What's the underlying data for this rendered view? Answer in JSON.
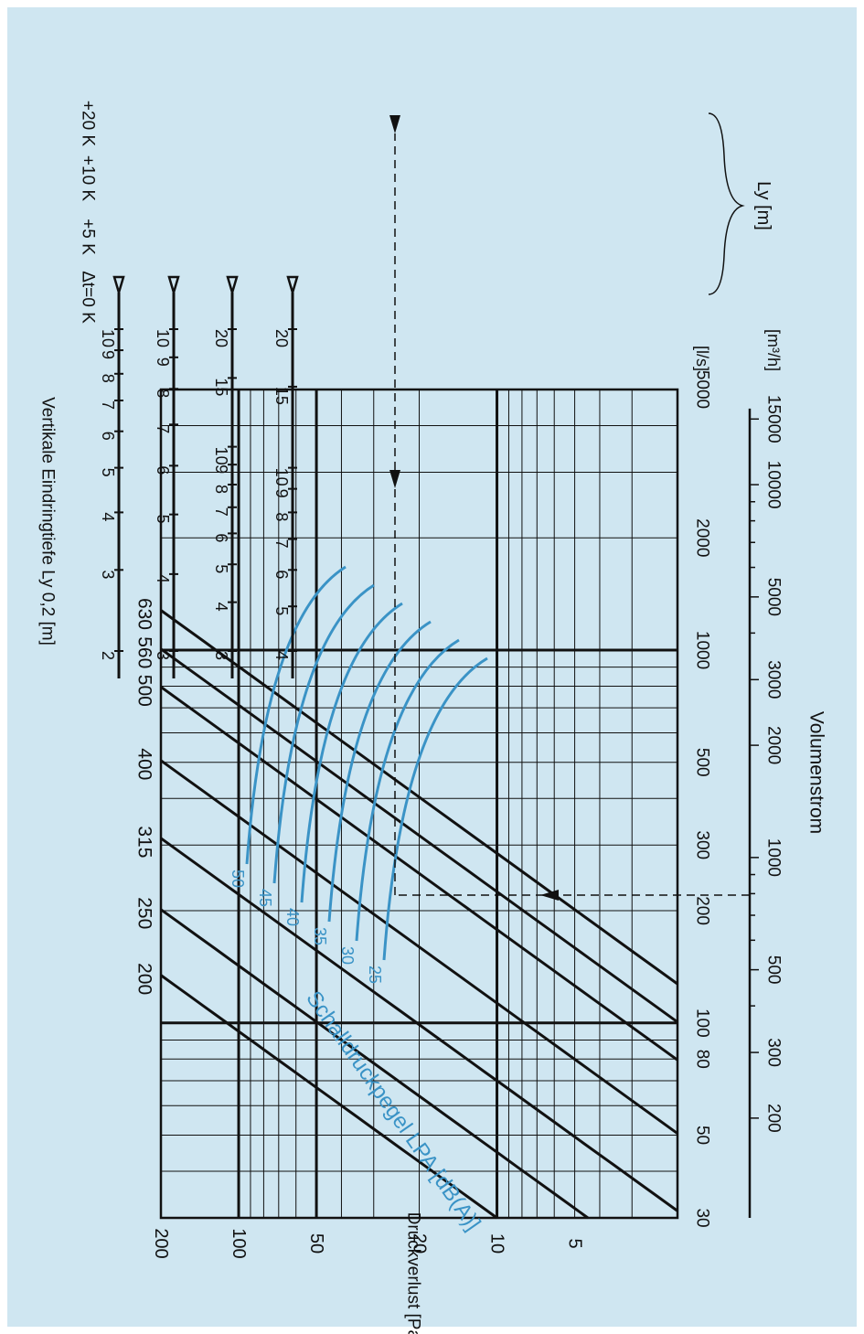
{
  "colors": {
    "background": "#cfe6f1",
    "ink": "#111111",
    "sound_curves": "#3a93c6"
  },
  "chart_data": {
    "type": "line",
    "orientation": "rotated-90-clockwise",
    "grid": true,
    "scale": "log-log",
    "x_axis": {
      "label": "Volumenstrom",
      "unit_ls": "[l/s]",
      "unit_m3h": "[m³/h]",
      "range_ls": [
        30,
        5000
      ],
      "ticks_ls": [
        "30",
        "50",
        "80",
        "100",
        "200",
        "300",
        "500",
        "1000",
        "2000",
        "5000"
      ],
      "ticks_m3h": [
        "200",
        "300",
        "500",
        "1000",
        "2000",
        "3000",
        "5000",
        "10000",
        "15000"
      ]
    },
    "y_axis": {
      "label": "Druckverlust [Pa]",
      "range": [
        2,
        200
      ],
      "ticks": [
        "5",
        "10",
        "20",
        "50",
        "100",
        "200"
      ]
    },
    "series": [
      {
        "name": "200",
        "points": [
          [
            30,
            10
          ],
          [
            100,
            111
          ]
        ]
      },
      {
        "name": "250",
        "points": [
          [
            45,
            10
          ],
          [
            148,
            108
          ]
        ]
      },
      {
        "name": "315",
        "points": [
          [
            70,
            10
          ],
          [
            232,
            110
          ]
        ]
      },
      {
        "name": "400",
        "points": [
          [
            113,
            10
          ],
          [
            390,
            119
          ]
        ]
      },
      {
        "name": "500",
        "points": [
          [
            178,
            10
          ],
          [
            617,
            120
          ]
        ]
      },
      {
        "name": "560",
        "points": [
          [
            225,
            10
          ],
          [
            780,
            120
          ]
        ]
      },
      {
        "name": "630",
        "points": [
          [
            285,
            10
          ],
          [
            990,
            120
          ]
        ]
      }
    ],
    "sound_curves": {
      "label": "Schalldruckpegel LPA [dB(A)]",
      "values": [
        "50",
        "45",
        "40",
        "35",
        "30",
        "25"
      ]
    },
    "throw_axes": {
      "title": "Vertikale Eindringtiefe Ly 0,2 [m]",
      "group_label": "Ly [m]",
      "axes": [
        {
          "label": "Δt=0 K",
          "ticks": [
            "20",
            "15",
            "10",
            "9",
            "8",
            "7",
            "6",
            "5",
            "4"
          ]
        },
        {
          "label": "+5 K",
          "ticks": [
            "20",
            "15",
            "10",
            "9",
            "8",
            "7",
            "6",
            "5",
            "4",
            "3"
          ]
        },
        {
          "label": "+10 K",
          "ticks": [
            "10",
            "9",
            "8",
            "7",
            "6",
            "5",
            "4",
            "3"
          ]
        },
        {
          "label": "+20 K",
          "ticks": [
            "10",
            "9",
            "8",
            "7",
            "6",
            "5",
            "4",
            "3",
            "2"
          ]
        }
      ]
    },
    "example_path": {
      "volumenstrom_m3h": 850,
      "dn": "500",
      "druckverlust": 21,
      "ly": 4
    }
  }
}
